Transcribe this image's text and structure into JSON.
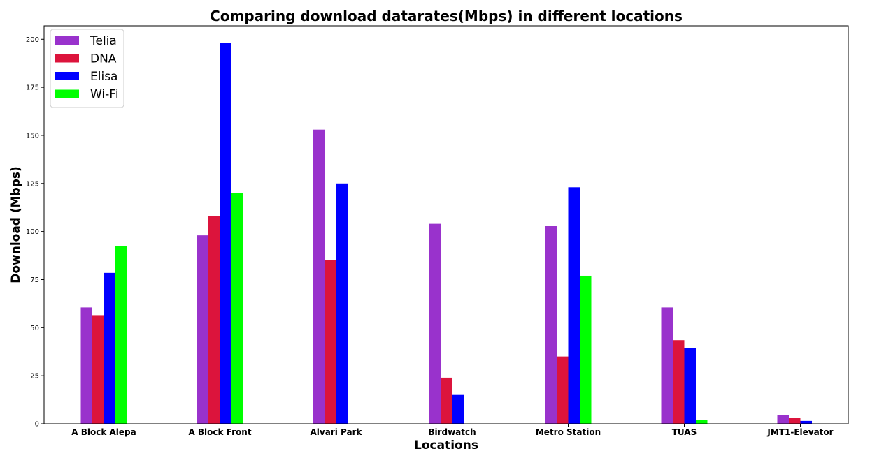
{
  "chart_data": {
    "type": "bar",
    "title": "Comparing download datarates(Mbps) in different locations",
    "xlabel": "Locations",
    "ylabel": "Download (Mbps)",
    "ylim": [
      0,
      207
    ],
    "yticks": [
      0,
      25,
      50,
      75,
      100,
      125,
      150,
      175,
      200
    ],
    "grid": false,
    "legend_position": "top-left",
    "categories": [
      "A Block Alepa",
      "A Block Front",
      "Alvari Park",
      "Birdwatch",
      "Metro Station",
      "TUAS",
      "JMT1-Elevator"
    ],
    "series": [
      {
        "name": "Telia",
        "color": "#9932CC",
        "values": [
          60.5,
          98,
          153,
          104,
          103,
          60.5,
          4.5
        ]
      },
      {
        "name": "DNA",
        "color": "#DC143C",
        "values": [
          56.5,
          108,
          85,
          24,
          35,
          43.5,
          3
        ]
      },
      {
        "name": "Elisa",
        "color": "#0000FF",
        "values": [
          78.5,
          198,
          125,
          15,
          123,
          39.5,
          1.5
        ]
      },
      {
        "name": "Wi-Fi",
        "color": "#00FF00",
        "values": [
          92.5,
          120,
          null,
          null,
          77,
          2,
          null
        ]
      }
    ]
  }
}
